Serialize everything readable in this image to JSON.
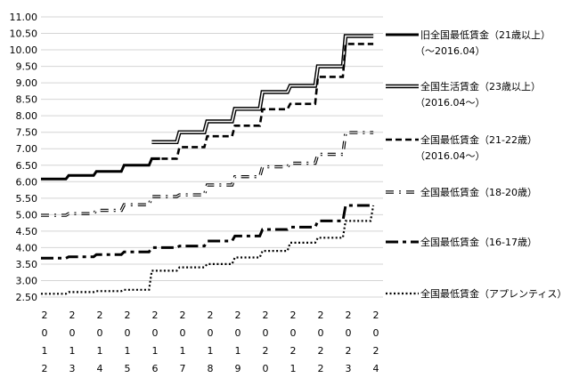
{
  "chart_data": {
    "type": "line",
    "title": "",
    "xlabel": "",
    "ylabel": "",
    "ylim": [
      2.5,
      11.0
    ],
    "y_ticks": [
      "11.00",
      "10.50",
      "10.00",
      "9.50",
      "9.00",
      "8.50",
      "8.00",
      "7.50",
      "7.00",
      "6.50",
      "6.00",
      "5.50",
      "5.00",
      "4.50",
      "4.00",
      "3.50",
      "3.00",
      "2.50"
    ],
    "x_ticks": [
      {
        "year": 2012,
        "chars": [
          "2",
          "0",
          "1",
          "2"
        ]
      },
      {
        "year": 2013,
        "chars": [
          "2",
          "0",
          "1",
          "3"
        ]
      },
      {
        "year": 2014,
        "chars": [
          "2",
          "0",
          "1",
          "4"
        ]
      },
      {
        "year": 2015,
        "chars": [
          "2",
          "0",
          "1",
          "5"
        ]
      },
      {
        "year": 2016,
        "chars": [
          "2",
          "0",
          "1",
          "6"
        ]
      },
      {
        "year": 2017,
        "chars": [
          "2",
          "0",
          "1",
          "7"
        ]
      },
      {
        "year": 2018,
        "chars": [
          "2",
          "0",
          "1",
          "8"
        ]
      },
      {
        "year": 2019,
        "chars": [
          "2",
          "0",
          "1",
          "9"
        ]
      },
      {
        "year": 2020,
        "chars": [
          "2",
          "0",
          "2",
          "0"
        ]
      },
      {
        "year": 2021,
        "chars": [
          "2",
          "0",
          "2",
          "1"
        ]
      },
      {
        "year": 2022,
        "chars": [
          "2",
          "0",
          "2",
          "2"
        ]
      },
      {
        "year": 2023,
        "chars": [
          "2",
          "0",
          "2",
          "3"
        ]
      },
      {
        "year": 2024,
        "chars": [
          "2",
          "0",
          "2",
          "4"
        ]
      }
    ],
    "grid": true,
    "legend_position": "right",
    "series": [
      {
        "name": "旧全国最低賃金（21歳以上）",
        "name_line2": "（～2016.04）",
        "style": "solid-thick",
        "x": [
          2012.0,
          2012.9,
          2013.0,
          2013.9,
          2014.0,
          2014.9,
          2015.0,
          2015.9,
          2016.0,
          2016.3
        ],
        "y": [
          6.08,
          6.08,
          6.19,
          6.19,
          6.31,
          6.31,
          6.5,
          6.5,
          6.7,
          6.7
        ]
      },
      {
        "name": "全国生活賃金（23歳以上）",
        "name_line2": "（2016.04～）",
        "style": "double",
        "x": [
          2016.0,
          2016.9,
          2017.0,
          2017.9,
          2018.0,
          2018.9,
          2019.0,
          2019.9,
          2020.0,
          2020.9,
          2021.0,
          2021.9,
          2022.0,
          2022.9,
          2023.0,
          2023.9,
          2024.0
        ],
        "y": [
          7.2,
          7.2,
          7.5,
          7.5,
          7.83,
          7.83,
          8.21,
          8.21,
          8.72,
          8.72,
          8.91,
          8.91,
          9.5,
          9.5,
          10.42,
          10.42,
          10.42
        ]
      },
      {
        "name": "全国最低賃金（21-22歳）",
        "name_line2": "（2016.04～）",
        "style": "dashed-thick",
        "x": [
          2016.0,
          2016.9,
          2017.0,
          2017.9,
          2018.0,
          2018.9,
          2019.0,
          2019.9,
          2020.0,
          2020.9,
          2021.0,
          2021.9,
          2022.0,
          2022.9,
          2023.0,
          2023.9,
          2024.0
        ],
        "y": [
          6.7,
          6.7,
          7.05,
          7.05,
          7.38,
          7.38,
          7.7,
          7.7,
          8.2,
          8.2,
          8.36,
          8.36,
          9.18,
          9.18,
          10.18,
          10.18,
          10.18
        ]
      },
      {
        "name": "全国最低賃金（18-20歳）",
        "name_line2": "",
        "style": "dash-dot-hollow",
        "x": [
          2012.0,
          2012.9,
          2013.0,
          2013.9,
          2014.0,
          2014.9,
          2015.0,
          2015.9,
          2016.0,
          2016.9,
          2017.0,
          2017.9,
          2018.0,
          2018.9,
          2019.0,
          2019.9,
          2020.0,
          2020.9,
          2021.0,
          2021.9,
          2022.0,
          2022.9,
          2023.0,
          2023.9,
          2024.0
        ],
        "y": [
          4.98,
          4.98,
          5.03,
          5.03,
          5.13,
          5.13,
          5.3,
          5.3,
          5.55,
          5.55,
          5.6,
          5.6,
          5.9,
          5.9,
          6.15,
          6.15,
          6.45,
          6.45,
          6.56,
          6.56,
          6.83,
          6.83,
          7.49,
          7.49,
          7.49
        ]
      },
      {
        "name": "全国最低賃金（16-17歳）",
        "name_line2": "",
        "style": "long-dash",
        "x": [
          2012.0,
          2012.9,
          2013.0,
          2013.9,
          2014.0,
          2014.9,
          2015.0,
          2015.9,
          2016.0,
          2016.9,
          2017.0,
          2017.9,
          2018.0,
          2018.9,
          2019.0,
          2019.9,
          2020.0,
          2020.9,
          2021.0,
          2021.9,
          2022.0,
          2022.9,
          2023.0,
          2023.9,
          2024.0
        ],
        "y": [
          3.68,
          3.68,
          3.72,
          3.72,
          3.79,
          3.79,
          3.87,
          3.87,
          4.0,
          4.0,
          4.05,
          4.05,
          4.2,
          4.2,
          4.35,
          4.35,
          4.55,
          4.55,
          4.62,
          4.62,
          4.81,
          4.81,
          5.28,
          5.28,
          5.28
        ]
      },
      {
        "name": "全国最低賃金（アプレンティス）",
        "name_line2": "",
        "style": "dotted",
        "x": [
          2012.0,
          2012.9,
          2013.0,
          2013.9,
          2014.0,
          2014.9,
          2015.0,
          2015.9,
          2016.0,
          2016.9,
          2017.0,
          2017.9,
          2018.0,
          2018.9,
          2019.0,
          2019.9,
          2020.0,
          2020.9,
          2021.0,
          2021.9,
          2022.0,
          2022.9,
          2023.0,
          2023.9,
          2024.0
        ],
        "y": [
          2.6,
          2.6,
          2.65,
          2.65,
          2.68,
          2.68,
          2.72,
          2.72,
          3.3,
          3.3,
          3.4,
          3.4,
          3.5,
          3.5,
          3.7,
          3.7,
          3.9,
          3.9,
          4.15,
          4.15,
          4.3,
          4.3,
          4.81,
          4.81,
          5.28
        ]
      }
    ]
  }
}
